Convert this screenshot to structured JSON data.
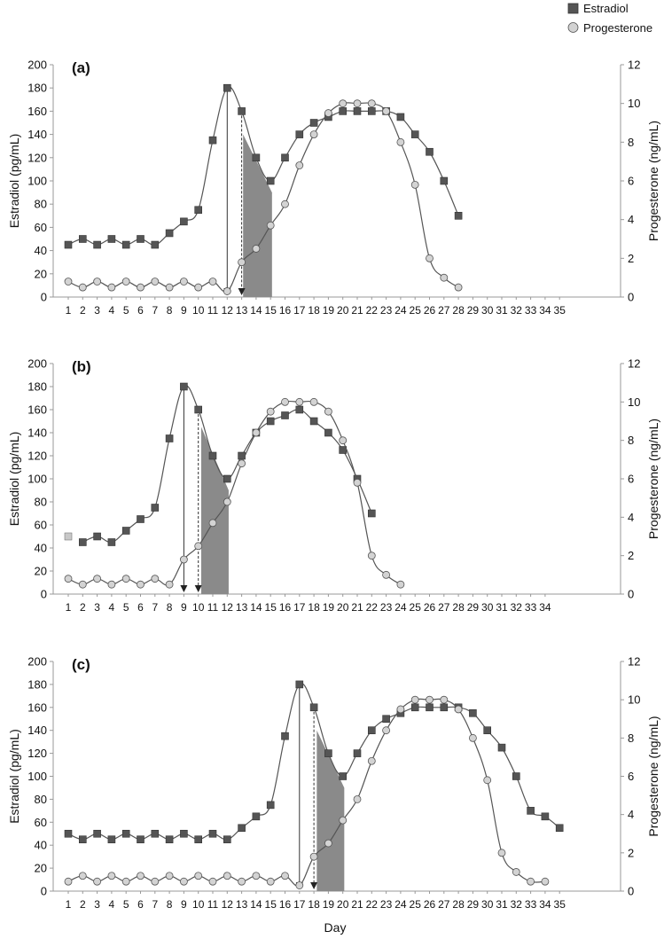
{
  "legend": {
    "position": "top-right",
    "items": [
      {
        "label": "Estradiol",
        "marker": "square",
        "color": "#555555"
      },
      {
        "label": "Progesterone",
        "marker": "circle",
        "color": "#d3d3d3"
      }
    ]
  },
  "xlabel": "Day",
  "colors": {
    "line": "#555555",
    "estradiol": "#555555",
    "progesterone": "#d3d3d3",
    "shade": "#8a8a8a",
    "axis": "#999999"
  },
  "chart_data": [
    {
      "type": "line",
      "panel_label": "(a)",
      "ylabel_left": "Estradiol (pg/mL)",
      "ylabel_right": "Progesterone (ng/mL)",
      "ylim_left": [
        0,
        200
      ],
      "ylim_right": [
        0,
        12
      ],
      "yticks_left": [
        "0",
        "20",
        "40",
        "60",
        "80",
        "100",
        "120",
        "140",
        "160",
        "180",
        "200"
      ],
      "yticks_right": [
        "0",
        "2",
        "4",
        "6",
        "8",
        "10",
        "12"
      ],
      "x_ticks": [
        "1",
        "2",
        "3",
        "4",
        "5",
        "6",
        "7",
        "8",
        "9",
        "10",
        "11",
        "12",
        "13",
        "14",
        "15",
        "16",
        "17",
        "18",
        "19",
        "20",
        "21",
        "22",
        "23",
        "24",
        "25",
        "26",
        "27",
        "28",
        "29",
        "30",
        "31",
        "32",
        "33",
        "34",
        "35"
      ],
      "series": [
        {
          "name": "Estradiol",
          "axis": "left",
          "x": [
            1,
            2,
            3,
            4,
            5,
            6,
            7,
            8,
            9,
            10,
            11,
            12,
            13,
            14,
            15,
            16,
            17,
            18,
            19,
            20,
            21,
            22,
            23,
            24,
            25,
            26,
            27,
            28
          ],
          "values": [
            45,
            50,
            45,
            50,
            45,
            50,
            45,
            55,
            65,
            75,
            135,
            180,
            160,
            120,
            100,
            120,
            140,
            150,
            155,
            160,
            160,
            160,
            160,
            155,
            140,
            125,
            100,
            70
          ]
        },
        {
          "name": "Progesterone",
          "axis": "right",
          "x": [
            1,
            2,
            3,
            4,
            5,
            6,
            7,
            8,
            9,
            10,
            11,
            12,
            13,
            14,
            15,
            16,
            17,
            18,
            19,
            20,
            21,
            22,
            23,
            24,
            25,
            26,
            27,
            28
          ],
          "values": [
            0.8,
            0.5,
            0.8,
            0.5,
            0.8,
            0.5,
            0.8,
            0.5,
            0.8,
            0.5,
            0.8,
            0.3,
            1.8,
            2.5,
            3.7,
            4.8,
            6.8,
            8.4,
            9.5,
            10.0,
            10.0,
            10.0,
            9.6,
            8.0,
            5.8,
            2.0,
            1.0,
            0.5
          ]
        }
      ],
      "markers": {
        "solid_arrow_day": 12,
        "dashed_arrow_day": 13
      },
      "shaded": {
        "from": 13.1,
        "to": 15.1,
        "y_start": 140,
        "y_end": 90
      }
    },
    {
      "type": "line",
      "panel_label": "(b)",
      "ylabel_left": "Estradiol (pg/mL)",
      "ylabel_right": "Progesterone (ng/mL)",
      "ylim_left": [
        0,
        200
      ],
      "ylim_right": [
        0,
        12
      ],
      "yticks_left": [
        "0",
        "20",
        "40",
        "60",
        "80",
        "100",
        "120",
        "140",
        "160",
        "180",
        "200"
      ],
      "yticks_right": [
        "0",
        "2",
        "4",
        "6",
        "8",
        "10",
        "12"
      ],
      "x_ticks": [
        "1",
        "2",
        "3",
        "4",
        "5",
        "6",
        "7",
        "8",
        "9",
        "10",
        "11",
        "12",
        "13",
        "14",
        "15",
        "16",
        "17",
        "18",
        "19",
        "20",
        "21",
        "22",
        "23",
        "24",
        "25",
        "26",
        "27",
        "28",
        "29",
        "30",
        "31",
        "32",
        "33",
        "34"
      ],
      "series": [
        {
          "name": "Estradiol",
          "axis": "left",
          "x": [
            2,
            3,
            4,
            5,
            6,
            7,
            8,
            9,
            10,
            11,
            12,
            13,
            14,
            15,
            16,
            17,
            18,
            19,
            20,
            21,
            22
          ],
          "values": [
            45,
            50,
            45,
            55,
            65,
            75,
            135,
            180,
            160,
            120,
            100,
            120,
            140,
            150,
            155,
            160,
            150,
            140,
            125,
            100,
            70
          ]
        },
        {
          "name": "Progesterone",
          "axis": "right",
          "x": [
            1,
            2,
            3,
            4,
            5,
            6,
            7,
            8,
            9,
            10,
            11,
            12,
            13,
            14,
            15,
            16,
            17,
            18,
            19,
            20,
            21,
            22,
            23,
            24
          ],
          "values": [
            0.8,
            0.5,
            0.8,
            0.5,
            0.8,
            0.5,
            0.8,
            0.5,
            1.8,
            2.5,
            3.7,
            4.8,
            6.8,
            8.4,
            9.5,
            10.0,
            10.0,
            10.0,
            9.5,
            8.0,
            5.8,
            2.0,
            1.0,
            0.5
          ]
        }
      ],
      "extra_points": [
        {
          "x": 1,
          "y": 50,
          "axis": "left",
          "style": "light-square"
        }
      ],
      "markers": {
        "solid_arrow_day": 9,
        "dashed_arrow_day": 10
      },
      "shaded": {
        "from": 10.2,
        "to": 12.1,
        "y_start": 145,
        "y_end": 90
      }
    },
    {
      "type": "line",
      "panel_label": "(c)",
      "ylabel_left": "Estradiol (pg/mL)",
      "ylabel_right": "Progesterone (ng/mL)",
      "ylim_left": [
        0,
        200
      ],
      "ylim_right": [
        0,
        12
      ],
      "yticks_left": [
        "0",
        "20",
        "40",
        "60",
        "80",
        "100",
        "120",
        "140",
        "160",
        "180",
        "200"
      ],
      "yticks_right": [
        "0",
        "2",
        "4",
        "6",
        "8",
        "10",
        "12"
      ],
      "x_ticks": [
        "1",
        "2",
        "3",
        "4",
        "5",
        "6",
        "7",
        "8",
        "9",
        "10",
        "11",
        "12",
        "13",
        "14",
        "15",
        "16",
        "17",
        "18",
        "19",
        "20",
        "21",
        "22",
        "23",
        "24",
        "25",
        "26",
        "27",
        "28",
        "29",
        "30",
        "31",
        "32",
        "33",
        "34",
        "35"
      ],
      "series": [
        {
          "name": "Estradiol",
          "axis": "left",
          "x": [
            1,
            2,
            3,
            4,
            5,
            6,
            7,
            8,
            9,
            10,
            11,
            12,
            13,
            14,
            15,
            16,
            17,
            18,
            19,
            20,
            21,
            22,
            23,
            24,
            25,
            26,
            27,
            28,
            29,
            30,
            31,
            32,
            33,
            34,
            35
          ],
          "values": [
            50,
            45,
            50,
            45,
            50,
            45,
            50,
            45,
            50,
            45,
            50,
            45,
            55,
            65,
            75,
            135,
            180,
            160,
            120,
            100,
            120,
            140,
            150,
            155,
            160,
            160,
            160,
            160,
            155,
            140,
            125,
            100,
            70,
            65,
            55
          ]
        },
        {
          "name": "Progesterone",
          "axis": "right",
          "x": [
            1,
            2,
            3,
            4,
            5,
            6,
            7,
            8,
            9,
            10,
            11,
            12,
            13,
            14,
            15,
            16,
            17,
            18,
            19,
            20,
            21,
            22,
            23,
            24,
            25,
            26,
            27,
            28,
            29,
            30,
            31,
            32,
            33,
            34
          ],
          "values": [
            0.5,
            0.8,
            0.5,
            0.8,
            0.5,
            0.8,
            0.5,
            0.8,
            0.5,
            0.8,
            0.5,
            0.8,
            0.5,
            0.8,
            0.5,
            0.8,
            0.3,
            1.8,
            2.5,
            3.7,
            4.8,
            6.8,
            8.4,
            9.5,
            10.0,
            10.0,
            10.0,
            9.5,
            8.0,
            5.8,
            2.0,
            1.0,
            0.5,
            0.5
          ]
        }
      ],
      "markers": {
        "solid_arrow_day": 17,
        "dashed_arrow_day": 18
      },
      "shaded": {
        "from": 18.2,
        "to": 20.1,
        "y_start": 140,
        "y_end": 90
      }
    }
  ]
}
